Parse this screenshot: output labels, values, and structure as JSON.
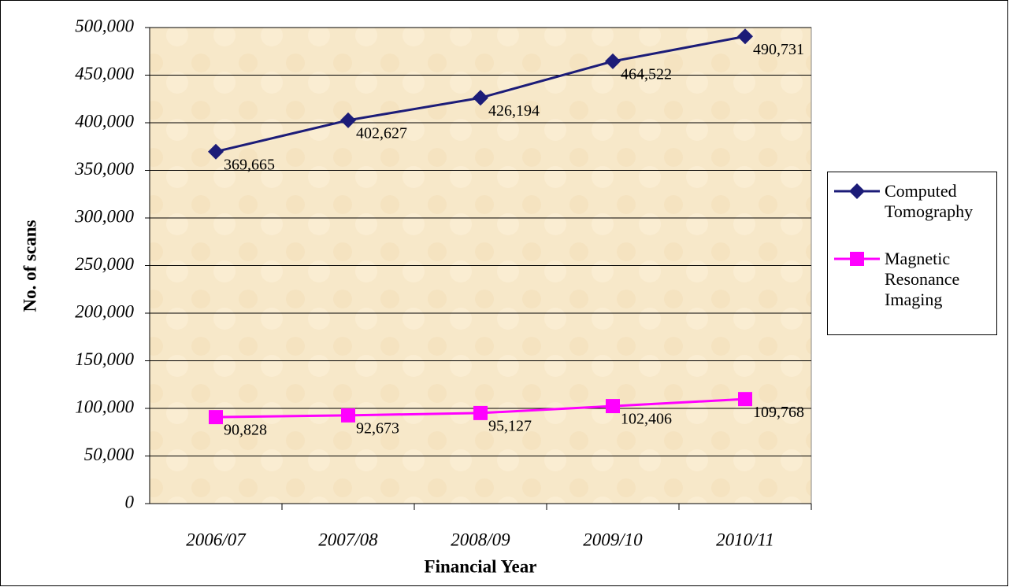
{
  "chart_data": {
    "type": "line",
    "x_label": "Financial Year",
    "y_label": "No. of scans",
    "categories": [
      "2006/07",
      "2007/08",
      "2008/09",
      "2009/10",
      "2010/11"
    ],
    "series": [
      {
        "name": "Computed Tomography",
        "color": "#1c1c78",
        "marker": "diamond",
        "values": [
          369665,
          402627,
          426194,
          464522,
          490731
        ],
        "value_labels": [
          "369,665",
          "402,627",
          "426,194",
          "464,522",
          "490,731"
        ]
      },
      {
        "name": "Magnetic Resonance Imaging",
        "color": "#ff00ff",
        "marker": "square",
        "values": [
          90828,
          92673,
          95127,
          102406,
          109768
        ],
        "value_labels": [
          "90,828",
          "92,673",
          "95,127",
          "102,406",
          "109,768"
        ]
      }
    ],
    "ylim": [
      0,
      500000
    ],
    "yticks": [
      0,
      {
        "value": 50000,
        "label": "50,000"
      },
      {
        "value": 100000,
        "label": "100,000"
      },
      {
        "value": 150000,
        "label": "150,000"
      },
      {
        "value": 200000,
        "label": "200,000"
      },
      {
        "value": 250000,
        "label": "250,000"
      },
      {
        "value": 300000,
        "label": "300,000"
      },
      {
        "value": 350000,
        "label": "350,000"
      },
      {
        "value": 400000,
        "label": "400,000"
      },
      {
        "value": 450000,
        "label": "450,000"
      },
      {
        "value": 500000,
        "label": "500,000"
      }
    ],
    "grid": true,
    "legend": "right"
  }
}
